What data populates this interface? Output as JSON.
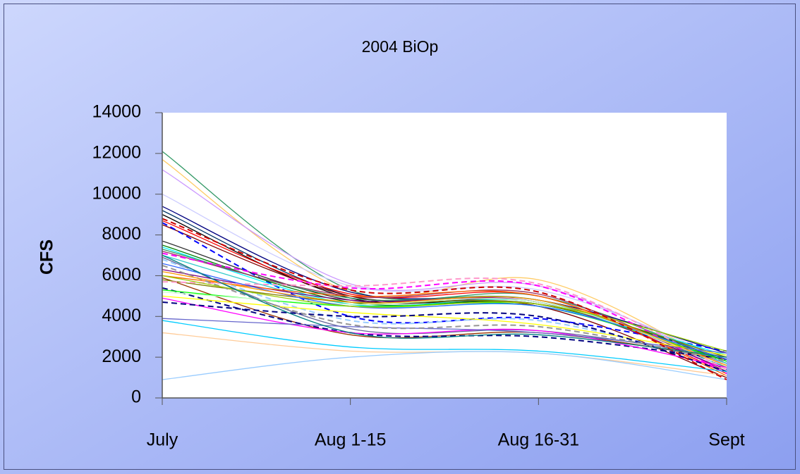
{
  "chart_data": {
    "type": "line",
    "title": "2004 BiOp",
    "y_label": "CFS",
    "categories": [
      "July",
      "Aug 1-15",
      "Aug 16-31",
      "Sept"
    ],
    "ylim": [
      0,
      14000
    ],
    "yticks": [
      0,
      2000,
      4000,
      6000,
      8000,
      10000,
      12000,
      14000
    ],
    "grid": false,
    "smooth": true,
    "series": [
      {
        "color": "#339966",
        "values": [
          12100,
          5300,
          5000,
          1800
        ]
      },
      {
        "color": "#ffcc66",
        "values": [
          11700,
          5200,
          5800,
          1500
        ]
      },
      {
        "color": "#cc99ff",
        "values": [
          11200,
          5600,
          5500,
          1600
        ]
      },
      {
        "color": "#ccccff",
        "values": [
          10000,
          5500,
          5300,
          1900
        ]
      },
      {
        "color": "#000080",
        "values": [
          9400,
          5200,
          4800,
          2200
        ]
      },
      {
        "color": "#003366",
        "values": [
          9200,
          5000,
          4600,
          2000
        ]
      },
      {
        "color": "#000000",
        "values": [
          9000,
          4900,
          4700,
          1700
        ]
      },
      {
        "color": "#ff0000",
        "values": [
          8700,
          5100,
          5000,
          1200
        ]
      },
      {
        "color": "#800000",
        "values": [
          8500,
          5000,
          4500,
          1000
        ]
      },
      {
        "color": "#0000ff",
        "dashed": true,
        "values": [
          8600,
          4000,
          3900,
          2300
        ]
      },
      {
        "color": "#333333",
        "values": [
          7700,
          4800,
          4700,
          1800
        ]
      },
      {
        "color": "#008000",
        "values": [
          7500,
          4700,
          4600,
          1900
        ]
      },
      {
        "color": "#00ffff",
        "values": [
          7400,
          4600,
          4500,
          2100
        ]
      },
      {
        "color": "#339966",
        "values": [
          7300,
          4900,
          4800,
          1500
        ]
      },
      {
        "color": "#993366",
        "values": [
          7200,
          5000,
          5100,
          1300
        ]
      },
      {
        "color": "#ff00ff",
        "dashed": true,
        "values": [
          7100,
          5400,
          5500,
          1200
        ]
      },
      {
        "color": "#33cccc",
        "values": [
          7000,
          4600,
          4700,
          1700
        ]
      },
      {
        "color": "#666699",
        "values": [
          6900,
          3400,
          3300,
          2000
        ]
      },
      {
        "color": "#99ccff",
        "dashed": true,
        "values": [
          6800,
          3800,
          3800,
          1600
        ]
      },
      {
        "color": "#800080",
        "values": [
          6300,
          4800,
          4700,
          1400
        ]
      },
      {
        "color": "#ff6600",
        "values": [
          6000,
          5000,
          5000,
          1100
        ]
      },
      {
        "color": "#993300",
        "values": [
          5900,
          3100,
          3200,
          1900
        ]
      },
      {
        "color": "#808000",
        "values": [
          5800,
          4700,
          4600,
          2000
        ]
      },
      {
        "color": "#ff99cc",
        "dashed": true,
        "values": [
          5700,
          5500,
          5600,
          1400
        ]
      },
      {
        "color": "#000080",
        "dashed": true,
        "values": [
          5400,
          3200,
          3000,
          1900
        ]
      },
      {
        "color": "#00ff00",
        "values": [
          5300,
          4500,
          4500,
          1800
        ]
      },
      {
        "color": "#ccffcc",
        "values": [
          5200,
          4600,
          4700,
          1600
        ]
      },
      {
        "color": "#ffff00",
        "values": [
          5000,
          4200,
          3600,
          2100
        ]
      },
      {
        "color": "#ff00ff",
        "values": [
          4900,
          3200,
          3300,
          1500
        ]
      },
      {
        "color": "#000080",
        "dashed": true,
        "values": [
          4700,
          4000,
          4000,
          1300
        ]
      },
      {
        "color": "#6666cc",
        "values": [
          3900,
          3500,
          3200,
          2200
        ]
      },
      {
        "color": "#00ccff",
        "values": [
          3800,
          2500,
          2300,
          1300
        ]
      },
      {
        "color": "#ffcc99",
        "values": [
          3200,
          2300,
          2200,
          1100
        ]
      },
      {
        "color": "#99ccff",
        "values": [
          900,
          2000,
          2200,
          900
        ]
      },
      {
        "color": "#3366ff",
        "values": [
          6600,
          4500,
          4500,
          1900
        ]
      },
      {
        "color": "#969696",
        "dashed": true,
        "values": [
          6500,
          3600,
          3500,
          1800
        ]
      },
      {
        "color": "#ff9900",
        "values": [
          6200,
          4700,
          4800,
          1600
        ]
      },
      {
        "color": "#99cc00",
        "values": [
          6000,
          4500,
          4600,
          2300
        ]
      },
      {
        "color": "#cc0000",
        "dashed": true,
        "values": [
          8800,
          5300,
          5200,
          900
        ]
      },
      {
        "color": "#008080",
        "values": [
          7000,
          3200,
          3100,
          2000
        ]
      }
    ]
  }
}
